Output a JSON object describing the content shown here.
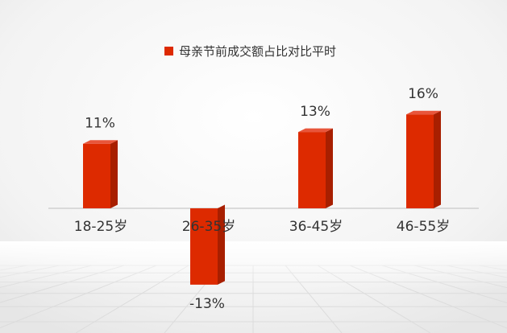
{
  "chart_data": {
    "type": "bar",
    "title": "",
    "xlabel": "",
    "ylabel": "",
    "legend": {
      "position": "top",
      "entries": [
        "母亲节前成交额占比对比平时"
      ]
    },
    "categories": [
      "18-25岁",
      "26-35岁",
      "36-45岁",
      "46-55岁"
    ],
    "series": [
      {
        "name": "母亲节前成交额占比对比平时",
        "values": [
          11,
          -13,
          13,
          16
        ],
        "value_labels": [
          "11%",
          "-13%",
          "13%",
          "16%"
        ]
      }
    ],
    "ylim": [
      -15,
      18
    ],
    "grid": false,
    "colors": {
      "bar_front": "#dd2a00",
      "bar_side": "#a81f00",
      "bar_top": "#e8553a",
      "axis": "#d0d0d0",
      "text": "#333333"
    }
  }
}
